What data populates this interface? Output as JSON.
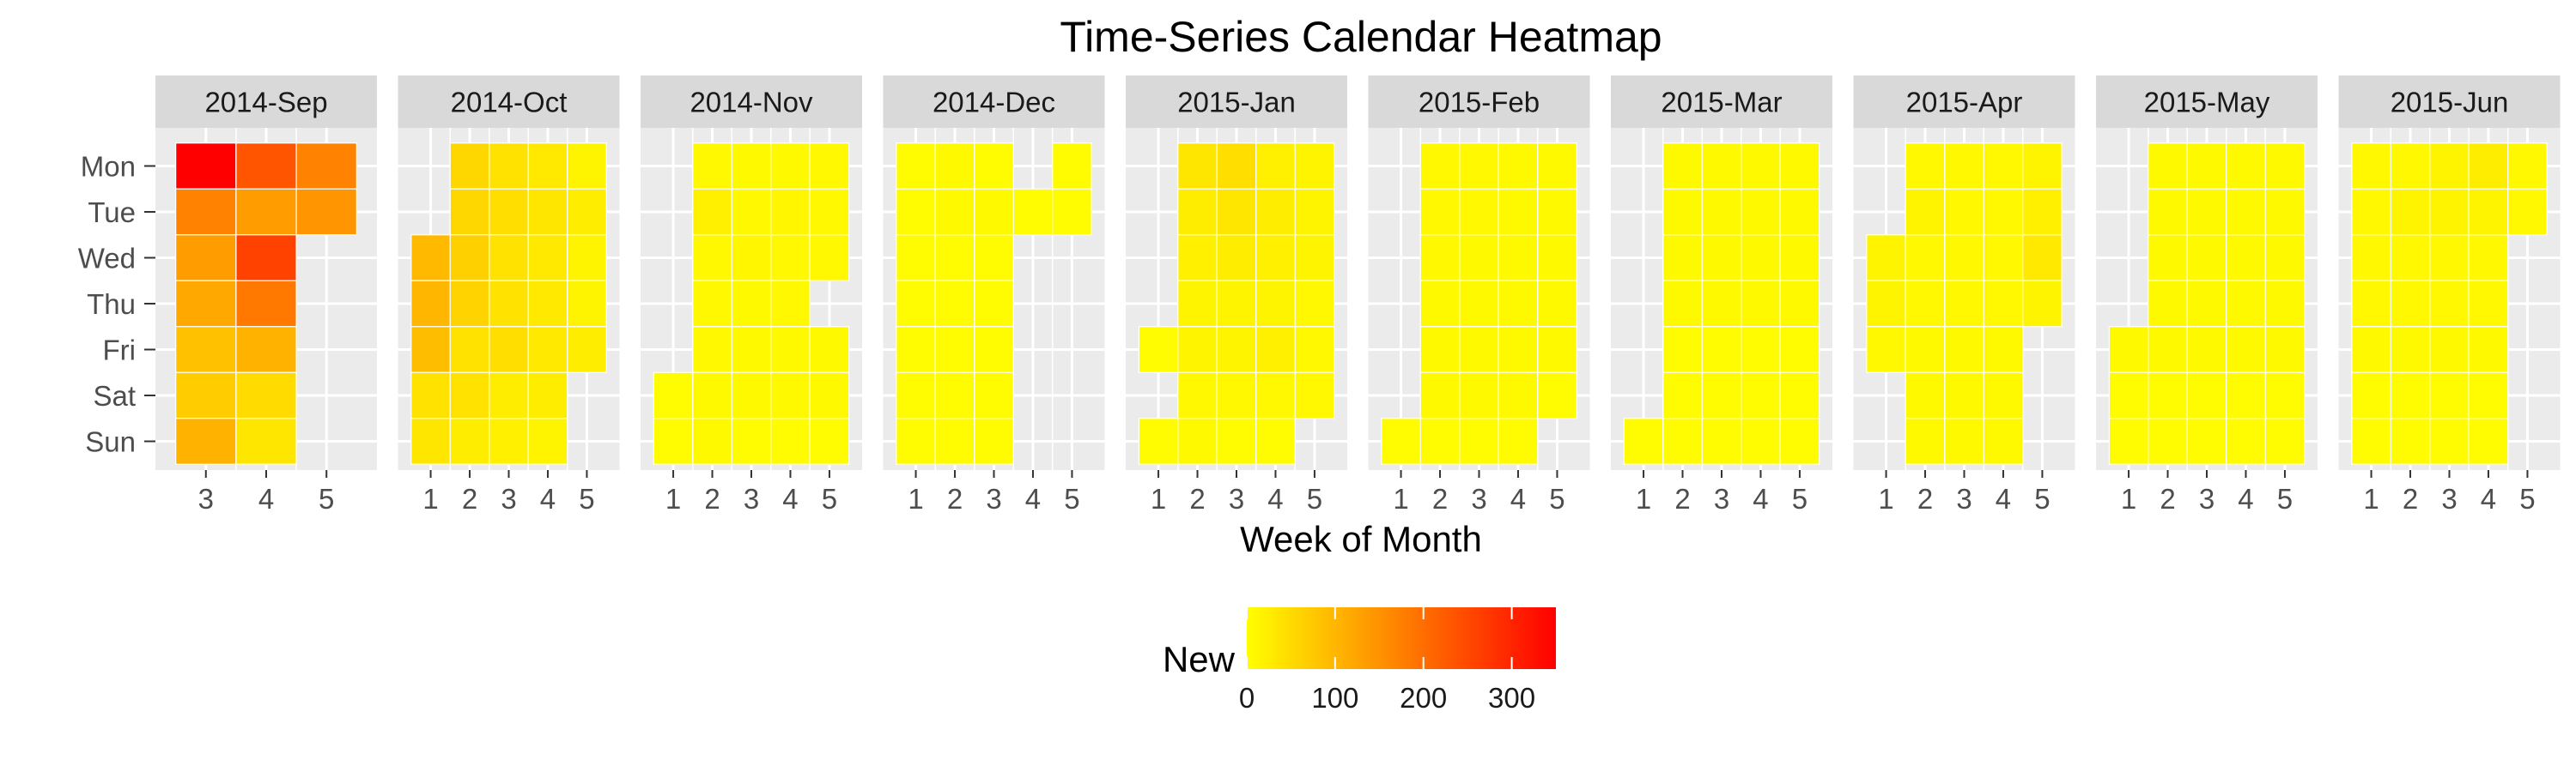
{
  "chart_data": {
    "type": "heatmap",
    "title": "Time-Series Calendar Heatmap",
    "xlabel": "Week of Month",
    "ylabel": "",
    "legend": {
      "title": "New",
      "ticks": [
        0,
        100,
        200,
        300
      ],
      "range": [
        0,
        350
      ],
      "colors": [
        "#FFFF00",
        "#FF0000"
      ],
      "placement": "bottom"
    },
    "y_categories": [
      "Mon",
      "Tue",
      "Wed",
      "Thu",
      "Fri",
      "Sat",
      "Sun"
    ],
    "facets": [
      {
        "label": "2014-Sep",
        "weeks": [
          3,
          4,
          5
        ],
        "values": [
          [
            350,
            235,
            170
          ],
          [
            170,
            135,
            145
          ],
          [
            135,
            260,
            null
          ],
          [
            120,
            185,
            null
          ],
          [
            85,
            105,
            null
          ],
          [
            70,
            50,
            null
          ],
          [
            105,
            35,
            null
          ]
        ]
      },
      {
        "label": "2014-Oct",
        "weeks": [
          1,
          2,
          3,
          4,
          5
        ],
        "values": [
          [
            null,
            55,
            40,
            30,
            15
          ],
          [
            null,
            55,
            45,
            35,
            25
          ],
          [
            95,
            65,
            40,
            30,
            15
          ],
          [
            100,
            60,
            40,
            30,
            15
          ],
          [
            90,
            40,
            45,
            30,
            25
          ],
          [
            40,
            40,
            25,
            25,
            null
          ],
          [
            35,
            25,
            20,
            15,
            null
          ]
        ]
      },
      {
        "label": "2014-Nov",
        "weeks": [
          1,
          2,
          3,
          4,
          5
        ],
        "values": [
          [
            null,
            10,
            8,
            8,
            10
          ],
          [
            null,
            20,
            10,
            12,
            10
          ],
          [
            null,
            10,
            12,
            10,
            10
          ],
          [
            null,
            10,
            8,
            10,
            null
          ],
          [
            null,
            10,
            8,
            8,
            8
          ],
          [
            5,
            8,
            8,
            8,
            8
          ],
          [
            5,
            8,
            5,
            5,
            5
          ]
        ]
      },
      {
        "label": "2014-Dec",
        "weeks": [
          1,
          2,
          3,
          4,
          5
        ],
        "values": [
          [
            5,
            8,
            5,
            null,
            5
          ],
          [
            5,
            8,
            8,
            5,
            5
          ],
          [
            5,
            5,
            5,
            null,
            null
          ],
          [
            5,
            5,
            5,
            null,
            null
          ],
          [
            5,
            5,
            5,
            null,
            null
          ],
          [
            5,
            5,
            5,
            null,
            null
          ],
          [
            5,
            5,
            5,
            null,
            null
          ]
        ]
      },
      {
        "label": "2015-Jan",
        "weeks": [
          1,
          2,
          3,
          4,
          5
        ],
        "values": [
          [
            null,
            35,
            45,
            20,
            15
          ],
          [
            null,
            25,
            35,
            25,
            15
          ],
          [
            null,
            20,
            25,
            20,
            15
          ],
          [
            null,
            15,
            15,
            15,
            10
          ],
          [
            5,
            15,
            15,
            20,
            10
          ],
          [
            null,
            10,
            10,
            10,
            10
          ],
          [
            5,
            8,
            5,
            5,
            null
          ]
        ]
      },
      {
        "label": "2015-Feb",
        "weeks": [
          1,
          2,
          3,
          4,
          5
        ],
        "values": [
          [
            null,
            10,
            10,
            8,
            8
          ],
          [
            null,
            10,
            10,
            8,
            8
          ],
          [
            null,
            10,
            8,
            8,
            8
          ],
          [
            null,
            8,
            8,
            8,
            8
          ],
          [
            null,
            8,
            8,
            8,
            8
          ],
          [
            null,
            8,
            8,
            8,
            5
          ],
          [
            5,
            5,
            5,
            5,
            null
          ]
        ]
      },
      {
        "label": "2015-Mar",
        "weeks": [
          1,
          2,
          3,
          4,
          5
        ],
        "values": [
          [
            null,
            8,
            8,
            8,
            8
          ],
          [
            null,
            8,
            8,
            8,
            8
          ],
          [
            null,
            8,
            8,
            8,
            8
          ],
          [
            null,
            8,
            8,
            8,
            8
          ],
          [
            null,
            5,
            5,
            5,
            5
          ],
          [
            null,
            5,
            5,
            5,
            5
          ],
          [
            5,
            5,
            5,
            5,
            5
          ]
        ]
      },
      {
        "label": "2015-Apr",
        "weeks": [
          1,
          2,
          3,
          4,
          5
        ],
        "values": [
          [
            null,
            10,
            10,
            10,
            15
          ],
          [
            null,
            15,
            10,
            10,
            20
          ],
          [
            15,
            10,
            10,
            10,
            30
          ],
          [
            15,
            10,
            10,
            10,
            15
          ],
          [
            10,
            8,
            8,
            8,
            null
          ],
          [
            null,
            8,
            8,
            8,
            null
          ],
          [
            null,
            8,
            8,
            8,
            null
          ]
        ]
      },
      {
        "label": "2015-May",
        "weeks": [
          1,
          2,
          3,
          4,
          5
        ],
        "values": [
          [
            null,
            8,
            8,
            8,
            8
          ],
          [
            null,
            8,
            8,
            8,
            8
          ],
          [
            null,
            8,
            8,
            8,
            8
          ],
          [
            null,
            8,
            8,
            8,
            8
          ],
          [
            8,
            8,
            8,
            8,
            8
          ],
          [
            5,
            5,
            5,
            5,
            5
          ],
          [
            5,
            5,
            5,
            5,
            5
          ]
        ]
      },
      {
        "label": "2015-Jun",
        "weeks": [
          1,
          2,
          3,
          4,
          5
        ],
        "values": [
          [
            10,
            10,
            15,
            25,
            10
          ],
          [
            10,
            15,
            15,
            15,
            10
          ],
          [
            10,
            10,
            10,
            10,
            null
          ],
          [
            10,
            10,
            10,
            10,
            null
          ],
          [
            8,
            8,
            8,
            8,
            null
          ],
          [
            5,
            5,
            5,
            5,
            null
          ],
          [
            5,
            5,
            5,
            5,
            null
          ]
        ]
      }
    ]
  }
}
